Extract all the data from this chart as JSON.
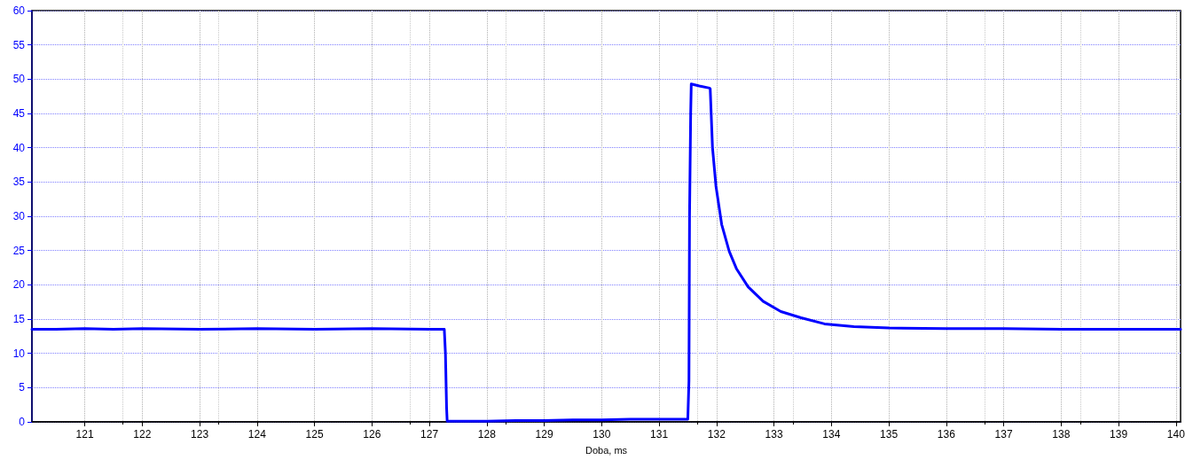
{
  "chart_data": {
    "type": "line",
    "xlabel": "Doba, ms",
    "xlim": [
      120.08,
      140.08
    ],
    "xticks": [
      121,
      122,
      123,
      124,
      125,
      126,
      127,
      128,
      129,
      130,
      131,
      132,
      133,
      134,
      135,
      136,
      137,
      138,
      139,
      140
    ],
    "ylim": [
      0,
      60
    ],
    "yticks": [
      0,
      5,
      10,
      15,
      20,
      25,
      30,
      35,
      40,
      45,
      50,
      55,
      60
    ],
    "grid": true,
    "marker": "none",
    "line_style": "solid",
    "series": [
      {
        "color": "#0000ff",
        "x": [
          120.08,
          120.5,
          121,
          121.5,
          122,
          123,
          124,
          125,
          126,
          127,
          127.26,
          127.28,
          127.3,
          127.31,
          128,
          128.5,
          129,
          129.5,
          130,
          130.5,
          131,
          131.5,
          131.52,
          131.53,
          131.55,
          131.56,
          131.7,
          131.88,
          131.89,
          131.93,
          131.99,
          132.09,
          132.22,
          132.35,
          132.55,
          132.81,
          133.12,
          133.47,
          133.88,
          134.39,
          135,
          136,
          137,
          138,
          139,
          140.08
        ],
        "values": [
          13.5,
          13.5,
          13.6,
          13.5,
          13.6,
          13.5,
          13.6,
          13.5,
          13.6,
          13.5,
          13.5,
          10,
          2,
          0.1,
          0.1,
          0.2,
          0.2,
          0.3,
          0.3,
          0.4,
          0.4,
          0.4,
          6,
          30,
          45,
          49.3,
          49,
          48.7,
          48.6,
          40,
          34.4,
          28.8,
          24.9,
          22.3,
          19.7,
          17.6,
          16.1,
          15.2,
          14.3,
          13.9,
          13.7,
          13.6,
          13.6,
          13.5,
          13.5,
          13.5
        ]
      }
    ]
  }
}
